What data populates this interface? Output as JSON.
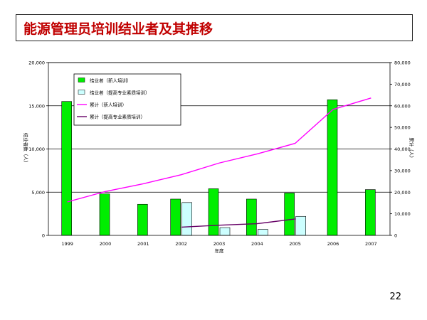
{
  "slide": {
    "title": "能源管理员培训结业者及其推移",
    "page_number": "22"
  },
  "colors": {
    "title": "#c00000",
    "bar_new": "#00ee00",
    "bar_pro": "#ccffff",
    "line_new": "#ff00ff",
    "line_pro": "#660066"
  },
  "chart_data": {
    "type": "bar",
    "categories": [
      "1999",
      "2000",
      "2001",
      "2002",
      "2003",
      "2004",
      "2005",
      "2006",
      "2007"
    ],
    "xlabel": "年度",
    "ylabel_left": "结业者数（人）",
    "ylabel_right": "累计（人）",
    "ylim_left": [
      0,
      20000
    ],
    "ylim_right": [
      0,
      80000
    ],
    "yticks_left": [
      "0",
      "5,000",
      "10,000",
      "15,000",
      "20,000"
    ],
    "yticks_right": [
      "0",
      "10,000",
      "20,000",
      "30,000",
      "40,000",
      "50,000",
      "60,000",
      "70,000",
      "80,000"
    ],
    "grid": true,
    "legend_position": "top-left",
    "series": [
      {
        "name": "结业者（新人培训）",
        "kind": "bar",
        "axis": "left",
        "values": [
          15500,
          4800,
          3600,
          4200,
          5400,
          4200,
          4900,
          15700,
          5300
        ]
      },
      {
        "name": "结业者（提高专业素质培训）",
        "kind": "bar",
        "axis": "left",
        "values": [
          null,
          null,
          null,
          3800,
          900,
          700,
          2200,
          null,
          null
        ]
      },
      {
        "name": "累计（新人培训）",
        "kind": "line",
        "axis": "right",
        "values": [
          15500,
          20300,
          23900,
          28100,
          33500,
          37700,
          42600,
          58300,
          63600
        ]
      },
      {
        "name": "累计（提高专业素质培训）",
        "kind": "line",
        "axis": "right",
        "values": [
          null,
          null,
          null,
          3800,
          4700,
          5400,
          7600,
          null,
          null
        ]
      }
    ]
  }
}
